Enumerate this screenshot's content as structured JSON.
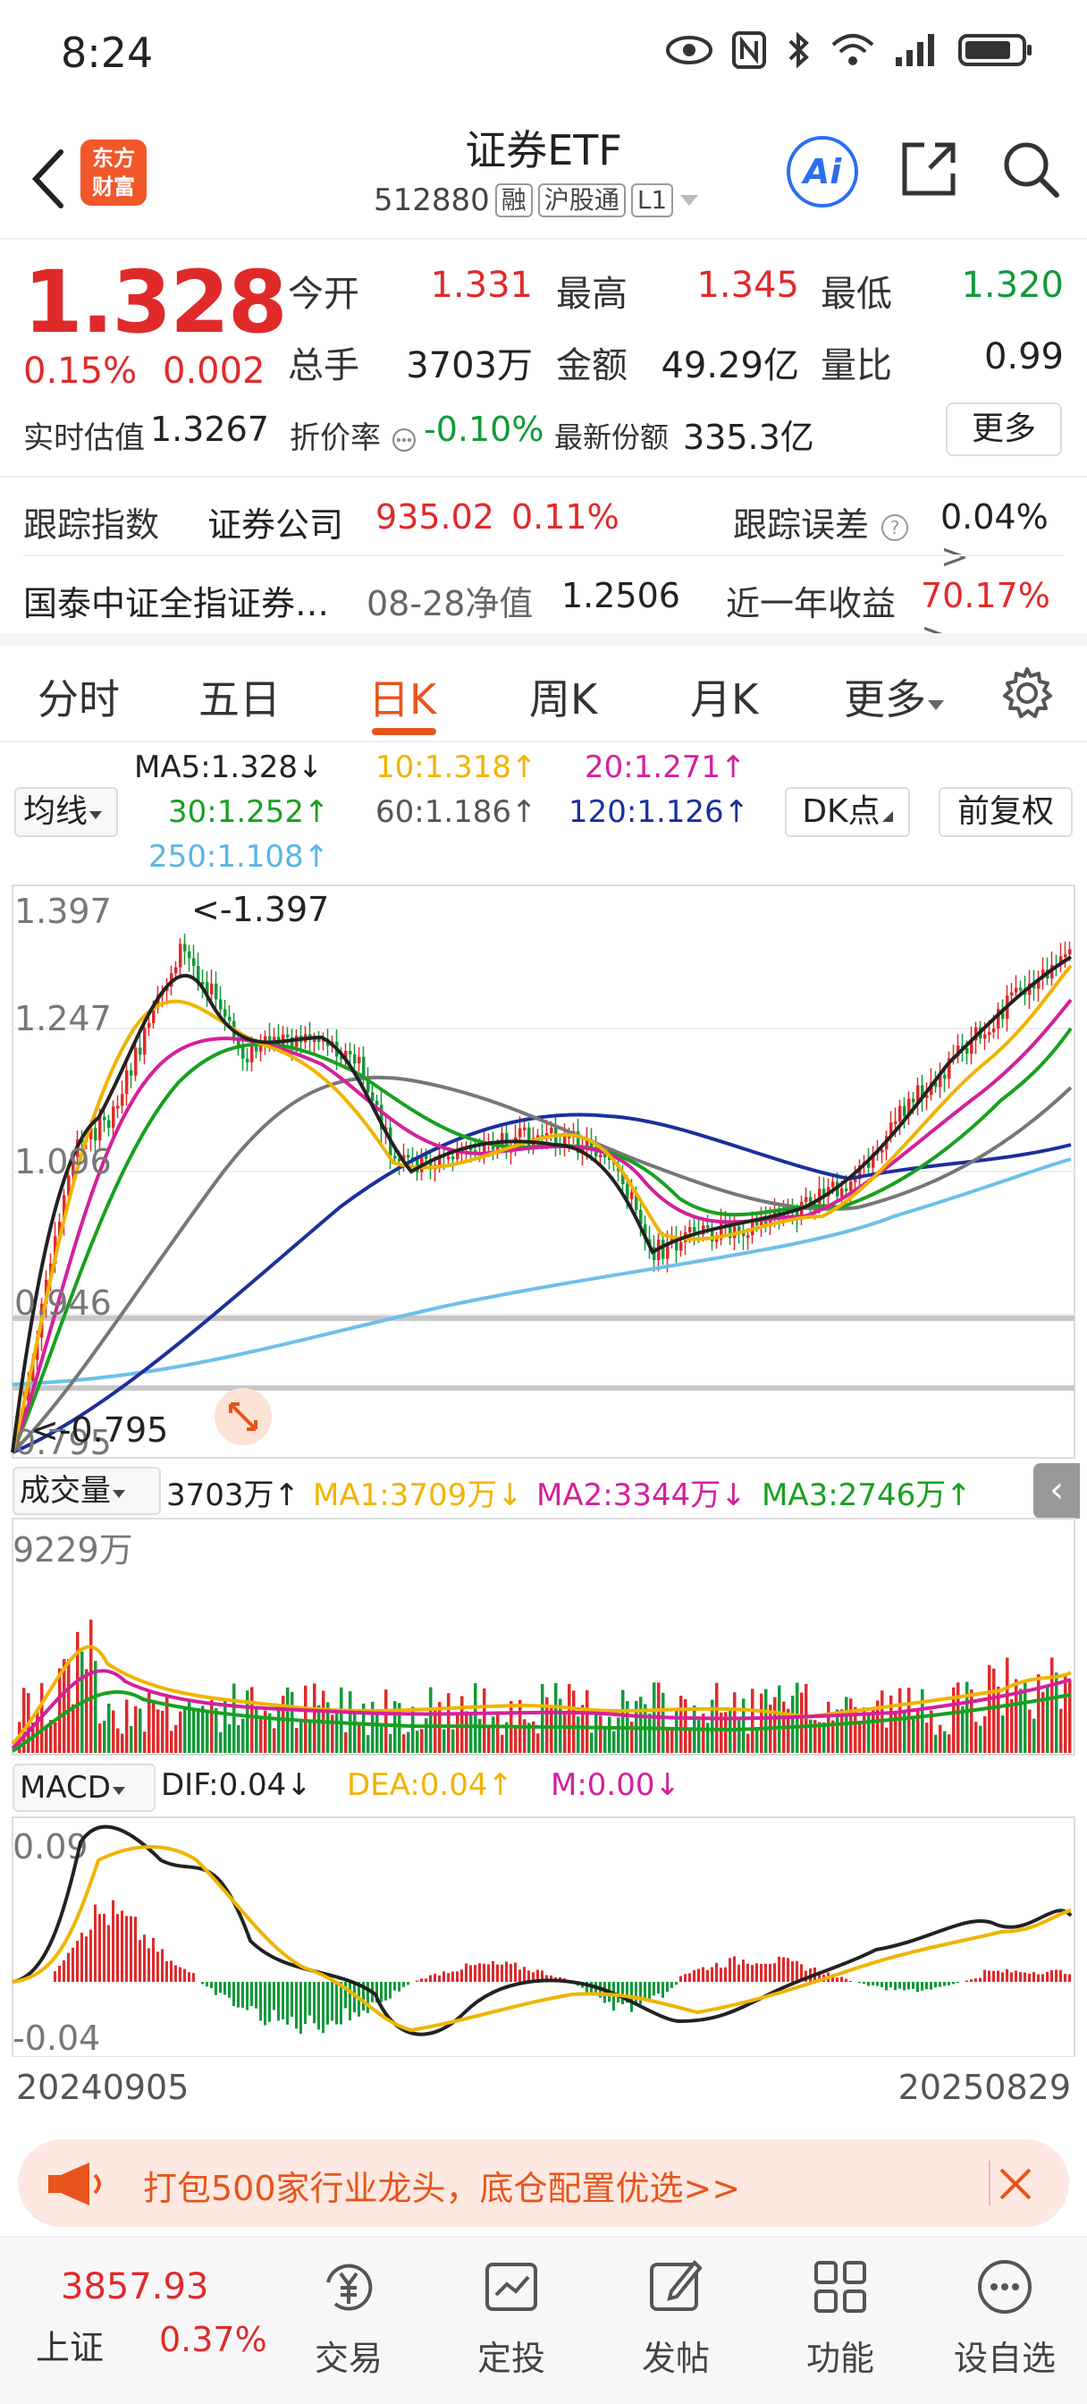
{
  "status": {
    "time": "8:24"
  },
  "header": {
    "logo_line1": "东方",
    "logo_line2": "财富",
    "name": "证券ETF",
    "code": "512880",
    "tags": [
      "融",
      "沪股通",
      "L1"
    ],
    "ai_label": "Ai"
  },
  "quote": {
    "price": "1.328",
    "change_pct": "0.15%",
    "change_amt": "0.002",
    "open_label": "今开",
    "open": "1.331",
    "high_label": "最高",
    "high": "1.345",
    "low_label": "最低",
    "low": "1.320",
    "volume_label": "总手",
    "volume": "3703万",
    "amount_label": "金额",
    "amount": "49.29亿",
    "ratio_label": "量比",
    "ratio": "0.99",
    "est_label": "实时估值",
    "est": "1.3267",
    "discount_label": "折价率",
    "discount": "-0.10%",
    "shares_label": "最新份额",
    "shares": "335.3亿",
    "more_label": "更多"
  },
  "tracking": {
    "label": "跟踪指数",
    "index_name": "证券公司",
    "index_value": "935.02",
    "index_pct": "0.11%",
    "error_label": "跟踪误差",
    "error_value": "0.04%",
    "fund_name": "国泰中证全指证券…",
    "nav_label": "08-28净值",
    "nav_value": "1.2506",
    "year_label": "近一年收益",
    "year_value": "70.17%"
  },
  "tabs": [
    "分时",
    "五日",
    "日K",
    "周K",
    "月K",
    "更多"
  ],
  "active_tab": 2,
  "ma": {
    "select": "均线",
    "ma5": "MA5:1.328↓",
    "ma10": "10:1.318↑",
    "ma20": "20:1.271↑",
    "ma30": "30:1.252↑",
    "ma60": "60:1.186↑",
    "ma120": "120:1.126↑",
    "ma250": "250:1.108↑",
    "dk_label": "DK点",
    "fq_label": "前复权"
  },
  "colors": {
    "up": "#e02a2a",
    "down": "#129a3a",
    "ma5": "#222222",
    "ma10": "#f0b400",
    "ma20": "#d4209c",
    "ma30": "#18a020",
    "ma60": "#777777",
    "ma120": "#1c2f9c",
    "ma250": "#6cc0ea"
  },
  "price_axis": {
    "ticks": [
      "1.397",
      "1.247",
      "1.096",
      "0.946",
      "0.795"
    ],
    "max_label": "<-1.397",
    "min_label": "<-0.795"
  },
  "volume": {
    "select": "成交量",
    "value": "3703万↑",
    "ma1": "MA1:3709万↓",
    "ma2": "MA2:3344万↓",
    "ma3": "MA3:2746万↑",
    "max_label": "9229万"
  },
  "macd": {
    "select": "MACD",
    "dif": "DIF:0.04↓",
    "dea": "DEA:0.04↑",
    "m": "M:0.00↓",
    "top_label": "0.09",
    "bottom_label": "-0.04"
  },
  "dates": {
    "start": "20240905",
    "end": "20250829"
  },
  "chart_data": {
    "type": "candlestick",
    "x_range": [
      "20240905",
      "20250829"
    ],
    "ylim": [
      0.795,
      1.397
    ],
    "ma_lines": [
      "MA5",
      "MA10",
      "MA20",
      "MA30",
      "MA60",
      "MA120",
      "MA250"
    ],
    "series": [
      {
        "name": "MA120",
        "values": [
          0.8,
          0.86,
          0.95,
          1.03,
          1.08,
          1.12,
          1.1,
          1.07,
          1.05,
          1.07,
          1.09,
          1.126
        ]
      },
      {
        "name": "MA250",
        "values": [
          0.86,
          0.87,
          0.89,
          0.91,
          0.93,
          0.95,
          0.97,
          0.99,
          1.01,
          1.04,
          1.07,
          1.108
        ]
      }
    ]
  },
  "banner": {
    "text": "打包500家行业龙头，底仓配置优选>>"
  },
  "bottom": {
    "index_value": "3857.93",
    "index_name": "上证",
    "index_pct": "0.37%",
    "items": [
      "交易",
      "定投",
      "发帖",
      "功能",
      "设自选"
    ]
  }
}
